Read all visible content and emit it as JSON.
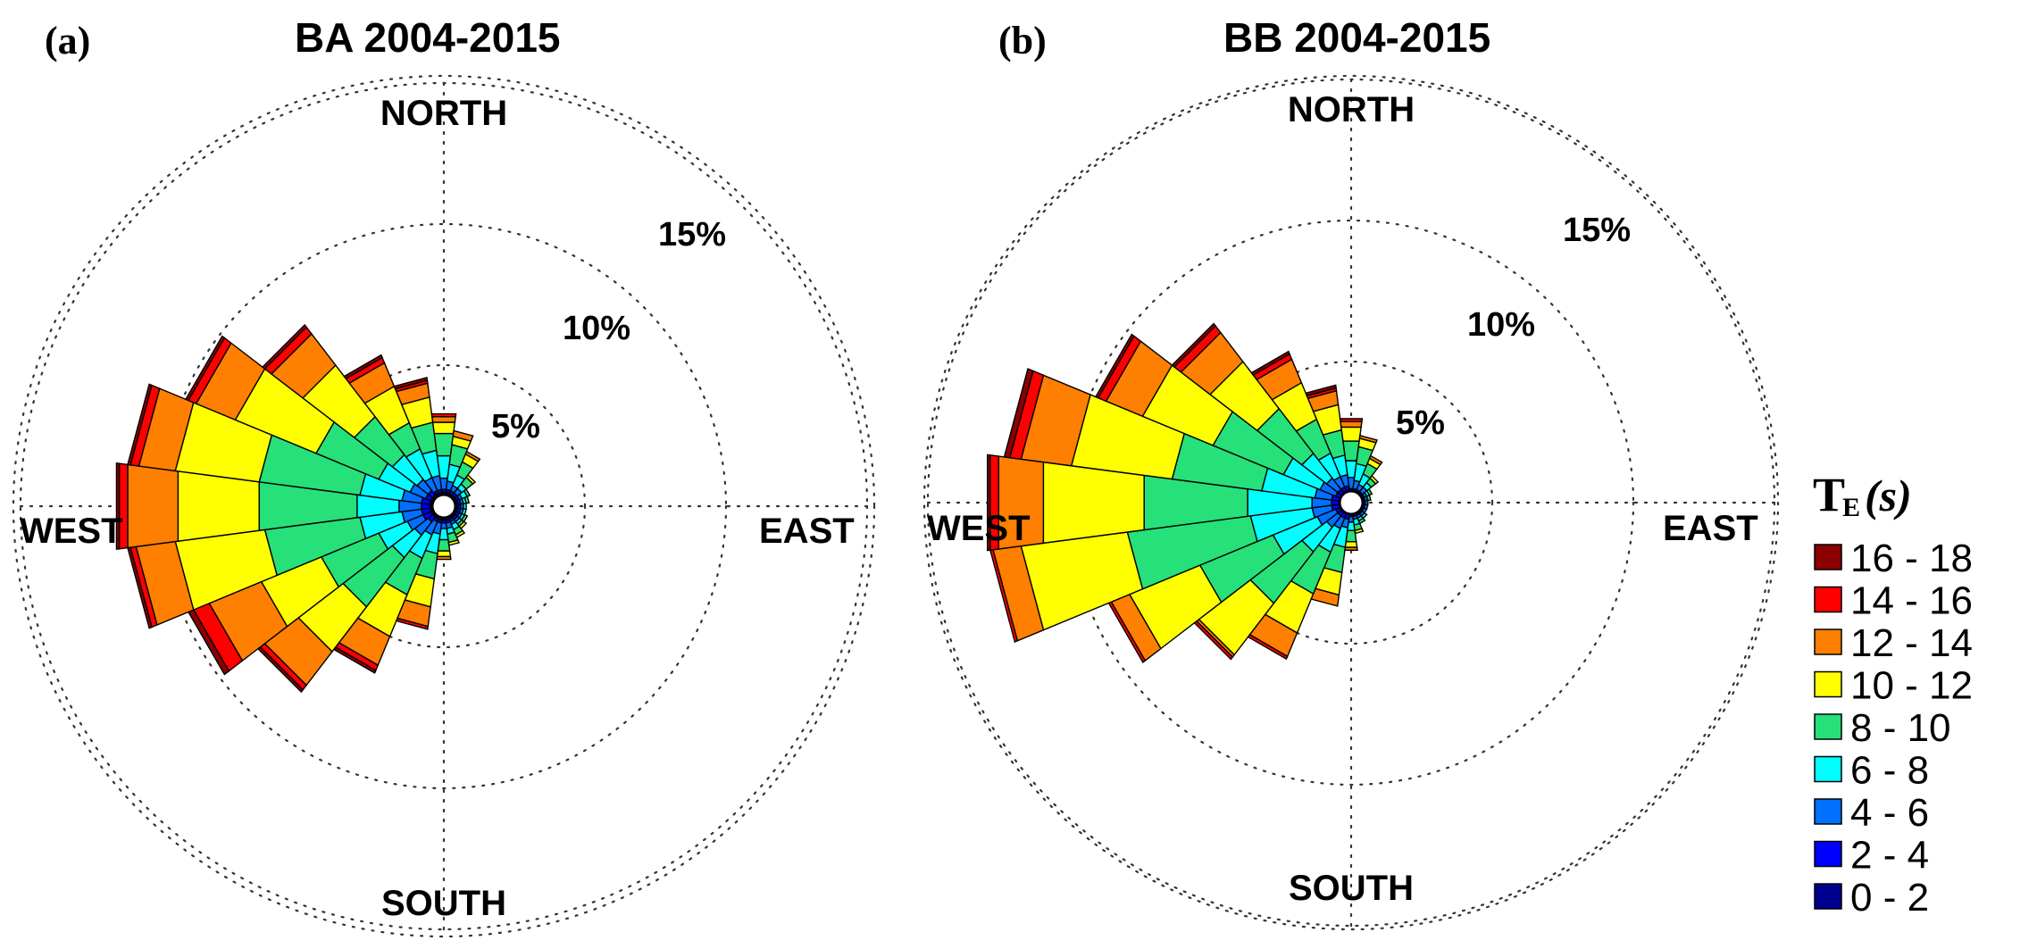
{
  "chart_data": {
    "type": "windrose",
    "panels": [
      {
        "label": "(a)",
        "title": "BA 2004-2015",
        "directions": {
          "north": "NORTH",
          "south": "SOUTH",
          "east": "EAST",
          "west": "WEST"
        },
        "ring_values": [
          5,
          10,
          15
        ],
        "ring_labels": [
          "5%",
          "10%",
          "15%"
        ],
        "rmax": 15,
        "sectors": [
          {
            "direction_deg": 225,
            "totals": [
              0.5,
              0.7,
              1.3,
              2.3,
              4.5,
              6.5,
              8.0,
              8.2,
              8.3
            ]
          },
          {
            "direction_deg": 240,
            "totals": [
              0.5,
              0.8,
              1.4,
              2.5,
              4.7,
              7.0,
              9.0,
              9.6,
              9.8
            ]
          },
          {
            "direction_deg": 255,
            "totals": [
              0.5,
              0.8,
              1.5,
              3.0,
              6.4,
              9.6,
              11.0,
              11.2,
              11.3
            ]
          },
          {
            "direction_deg": 270,
            "totals": [
              0.5,
              0.8,
              1.6,
              3.1,
              6.6,
              9.5,
              11.3,
              11.6,
              11.7
            ]
          },
          {
            "direction_deg": 285,
            "totals": [
              0.5,
              0.8,
              1.5,
              3.0,
              6.6,
              9.6,
              10.9,
              11.2,
              11.3
            ]
          },
          {
            "direction_deg": 300,
            "totals": [
              0.5,
              0.7,
              1.3,
              2.5,
              4.9,
              8.0,
              9.5,
              9.8,
              9.9
            ]
          },
          {
            "direction_deg": 315,
            "totals": [
              0.5,
              0.7,
              1.2,
              2.3,
              4.0,
              6.3,
              7.7,
              8.0,
              8.1
            ]
          },
          {
            "direction_deg": 330,
            "totals": [
              0.5,
              0.6,
              1.1,
              2.2,
              3.2,
              4.6,
              5.5,
              5.7,
              5.8
            ]
          },
          {
            "direction_deg": 345,
            "totals": [
              0.5,
              0.6,
              1.1,
              2.0,
              3.0,
              3.9,
              4.4,
              4.5,
              4.6
            ]
          },
          {
            "direction_deg": 0,
            "totals": [
              0.5,
              0.6,
              1.0,
              1.8,
              2.6,
              3.0,
              3.2,
              3.3,
              3.3
            ]
          },
          {
            "direction_deg": 210,
            "totals": [
              0.5,
              0.6,
              1.1,
              2.0,
              3.4,
              5.0,
              6.1,
              6.3,
              6.4
            ]
          },
          {
            "direction_deg": 195,
            "totals": [
              0.5,
              0.6,
              1.0,
              1.7,
              2.6,
              3.6,
              4.3,
              4.4,
              4.4
            ]
          },
          {
            "direction_deg": 180,
            "totals": [
              0.5,
              0.6,
              0.8,
              1.2,
              1.6,
              1.8,
              1.9,
              1.9,
              1.9
            ]
          },
          {
            "direction_deg": 165,
            "totals": [
              0.5,
              0.6,
              0.8,
              1.0,
              1.3,
              1.4,
              1.4,
              1.4,
              1.4
            ]
          },
          {
            "direction_deg": 150,
            "totals": [
              0.5,
              0.6,
              0.7,
              0.9,
              1.1,
              1.2,
              1.2,
              1.2,
              1.2
            ]
          },
          {
            "direction_deg": 135,
            "totals": [
              0.5,
              0.6,
              0.7,
              0.8,
              0.9,
              1.0,
              1.0,
              1.0,
              1.0
            ]
          },
          {
            "direction_deg": 120,
            "totals": [
              0.5,
              0.6,
              0.7,
              0.8,
              0.9,
              0.9,
              0.9,
              0.9,
              0.9
            ]
          },
          {
            "direction_deg": 105,
            "totals": [
              0.5,
              0.6,
              0.7,
              0.8,
              0.8,
              0.8,
              0.8,
              0.8,
              0.8
            ]
          },
          {
            "direction_deg": 90,
            "totals": [
              0.5,
              0.6,
              0.7,
              0.8,
              0.8,
              0.8,
              0.8,
              0.8,
              0.8
            ]
          },
          {
            "direction_deg": 75,
            "totals": [
              0.5,
              0.6,
              0.7,
              0.8,
              0.9,
              0.9,
              0.9,
              0.9,
              0.9
            ]
          },
          {
            "direction_deg": 60,
            "totals": [
              0.5,
              0.6,
              0.7,
              0.9,
              1.0,
              1.0,
              1.0,
              1.0,
              1.0
            ]
          },
          {
            "direction_deg": 45,
            "totals": [
              0.5,
              0.6,
              0.8,
              1.0,
              1.3,
              1.4,
              1.4,
              1.4,
              1.4
            ]
          },
          {
            "direction_deg": 30,
            "totals": [
              0.5,
              0.6,
              0.8,
              1.2,
              1.7,
              2.0,
              2.1,
              2.1,
              2.1
            ]
          },
          {
            "direction_deg": 15,
            "totals": [
              0.5,
              0.6,
              0.9,
              1.5,
              2.2,
              2.5,
              2.7,
              2.7,
              2.7
            ]
          }
        ]
      },
      {
        "label": "(b)",
        "title": "BB 2004-2015",
        "directions": {
          "north": "NORTH",
          "south": "SOUTH",
          "east": "EAST",
          "west": "WEST"
        },
        "ring_values": [
          5,
          10,
          15
        ],
        "ring_labels": [
          "5%",
          "10%",
          "15%"
        ],
        "rmax": 15,
        "sectors": [
          {
            "direction_deg": 225,
            "totals": [
              0.4,
              0.6,
              1.1,
              2.2,
              4.5,
              6.8,
              6.9,
              7.0,
              7.0
            ]
          },
          {
            "direction_deg": 240,
            "totals": [
              0.4,
              0.6,
              1.3,
              3.0,
              5.8,
              8.5,
              9.2,
              9.3,
              9.3
            ]
          },
          {
            "direction_deg": 255,
            "totals": [
              0.4,
              0.7,
              1.4,
              3.6,
              8.0,
              11.8,
              12.8,
              12.9,
              12.9
            ]
          },
          {
            "direction_deg": 270,
            "totals": [
              0.4,
              0.7,
              1.4,
              3.7,
              7.4,
              11.0,
              12.6,
              12.9,
              13.0
            ]
          },
          {
            "direction_deg": 285,
            "totals": [
              0.4,
              0.7,
              1.3,
              3.2,
              6.4,
              10.0,
              11.8,
              12.2,
              12.4
            ]
          },
          {
            "direction_deg": 300,
            "totals": [
              0.4,
              0.6,
              1.2,
              2.6,
              5.3,
              8.0,
              9.4,
              9.7,
              9.8
            ]
          },
          {
            "direction_deg": 315,
            "totals": [
              0.4,
              0.6,
              1.1,
              2.2,
              4.2,
              6.3,
              7.6,
              7.9,
              8.0
            ]
          },
          {
            "direction_deg": 330,
            "totals": [
              0.4,
              0.6,
              1.0,
              1.9,
              3.2,
              4.6,
              5.5,
              5.7,
              5.8
            ]
          },
          {
            "direction_deg": 345,
            "totals": [
              0.4,
              0.6,
              1.0,
              1.7,
              2.6,
              3.5,
              4.0,
              4.1,
              4.2
            ]
          },
          {
            "direction_deg": 0,
            "totals": [
              0.4,
              0.5,
              0.9,
              1.5,
              2.2,
              2.7,
              2.9,
              3.0,
              3.0
            ]
          },
          {
            "direction_deg": 210,
            "totals": [
              0.4,
              0.6,
              1.0,
              1.9,
              3.5,
              5.0,
              5.9,
              6.0,
              6.0
            ]
          },
          {
            "direction_deg": 195,
            "totals": [
              0.4,
              0.6,
              0.9,
              1.6,
              2.5,
              3.3,
              3.7,
              3.7,
              3.7
            ]
          },
          {
            "direction_deg": 180,
            "totals": [
              0.4,
              0.5,
              0.7,
              1.0,
              1.4,
              1.6,
              1.7,
              1.7,
              1.7
            ]
          },
          {
            "direction_deg": 165,
            "totals": [
              0.4,
              0.5,
              0.6,
              0.8,
              1.0,
              1.1,
              1.1,
              1.1,
              1.1
            ]
          },
          {
            "direction_deg": 150,
            "totals": [
              0.4,
              0.5,
              0.6,
              0.7,
              0.8,
              0.8,
              0.8,
              0.8,
              0.8
            ]
          },
          {
            "direction_deg": 135,
            "totals": [
              0.4,
              0.5,
              0.6,
              0.7,
              0.7,
              0.7,
              0.7,
              0.7,
              0.7
            ]
          },
          {
            "direction_deg": 120,
            "totals": [
              0.4,
              0.5,
              0.6,
              0.6,
              0.6,
              0.6,
              0.6,
              0.6,
              0.6
            ]
          },
          {
            "direction_deg": 105,
            "totals": [
              0.4,
              0.5,
              0.6,
              0.6,
              0.6,
              0.6,
              0.6,
              0.6,
              0.6
            ]
          },
          {
            "direction_deg": 90,
            "totals": [
              0.4,
              0.5,
              0.6,
              0.6,
              0.6,
              0.6,
              0.6,
              0.6,
              0.6
            ]
          },
          {
            "direction_deg": 75,
            "totals": [
              0.4,
              0.5,
              0.6,
              0.6,
              0.7,
              0.7,
              0.7,
              0.7,
              0.7
            ]
          },
          {
            "direction_deg": 60,
            "totals": [
              0.4,
              0.5,
              0.6,
              0.7,
              0.8,
              0.8,
              0.8,
              0.8,
              0.8
            ]
          },
          {
            "direction_deg": 45,
            "totals": [
              0.4,
              0.5,
              0.7,
              0.9,
              1.1,
              1.2,
              1.2,
              1.2,
              1.2
            ]
          },
          {
            "direction_deg": 30,
            "totals": [
              0.4,
              0.5,
              0.7,
              1.1,
              1.5,
              1.7,
              1.8,
              1.8,
              1.8
            ]
          },
          {
            "direction_deg": 15,
            "totals": [
              0.4,
              0.5,
              0.8,
              1.4,
              2.0,
              2.3,
              2.4,
              2.4,
              2.4
            ]
          }
        ]
      }
    ],
    "legend": {
      "title_main": "T",
      "title_sub": "E",
      "title_unit": "(s)",
      "bins": [
        "0 - 2",
        "2 - 4",
        "4 - 6",
        "6 - 8",
        "8 - 10",
        "10 - 12",
        "12 - 14",
        "14 - 16",
        "16 - 18"
      ],
      "colors": [
        "#00008f",
        "#0000ff",
        "#0070ff",
        "#00ffff",
        "#26e07a",
        "#ffff00",
        "#ff7f00",
        "#ff0000",
        "#8b0000"
      ]
    }
  }
}
